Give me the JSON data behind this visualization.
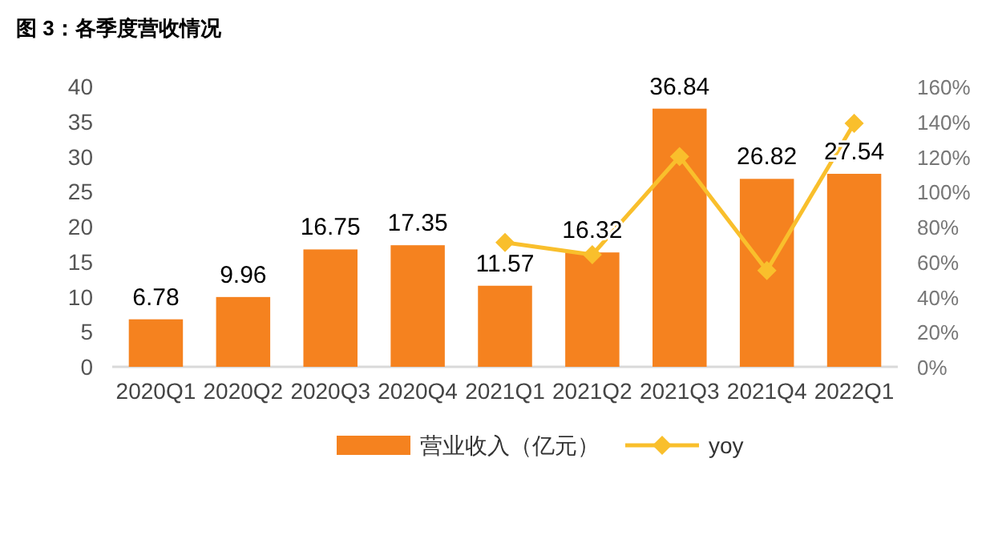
{
  "chart_data": {
    "type": "bar",
    "title": "图 3：各季度营收情况",
    "categories": [
      "2020Q1",
      "2020Q2",
      "2020Q3",
      "2020Q4",
      "2021Q1",
      "2021Q2",
      "2021Q3",
      "2021Q4",
      "2022Q1"
    ],
    "series": [
      {
        "name": "营业收入（亿元）",
        "color": "#f5821f",
        "values": [
          6.78,
          9.96,
          16.75,
          17.35,
          11.57,
          16.32,
          36.84,
          26.82,
          27.54
        ],
        "value_labels": [
          "6.78",
          "9.96",
          "16.75",
          "17.35",
          "11.57",
          "16.32",
          "36.84",
          "26.82",
          "27.54"
        ]
      },
      {
        "name": "yoy",
        "type": "line",
        "axis": "y2",
        "color": "#f9bf2c",
        "marker": "diamond",
        "values": [
          null,
          null,
          null,
          null,
          71,
          64,
          120,
          55,
          139
        ]
      }
    ],
    "ylim": [
      0,
      40
    ],
    "yticks": [
      0,
      5,
      10,
      15,
      20,
      25,
      30,
      35,
      40
    ],
    "y2lim": [
      0,
      160
    ],
    "y2ticks": [
      {
        "value": 0,
        "label": "0%"
      },
      {
        "value": 20,
        "label": "20%"
      },
      {
        "value": 40,
        "label": "40%"
      },
      {
        "value": 60,
        "label": "60%"
      },
      {
        "value": 80,
        "label": "80%"
      },
      {
        "value": 100,
        "label": "100%"
      },
      {
        "value": 120,
        "label": "120%"
      },
      {
        "value": 140,
        "label": "140%"
      },
      {
        "value": 160,
        "label": "160%"
      }
    ],
    "grid": false,
    "legend": "bottom"
  }
}
